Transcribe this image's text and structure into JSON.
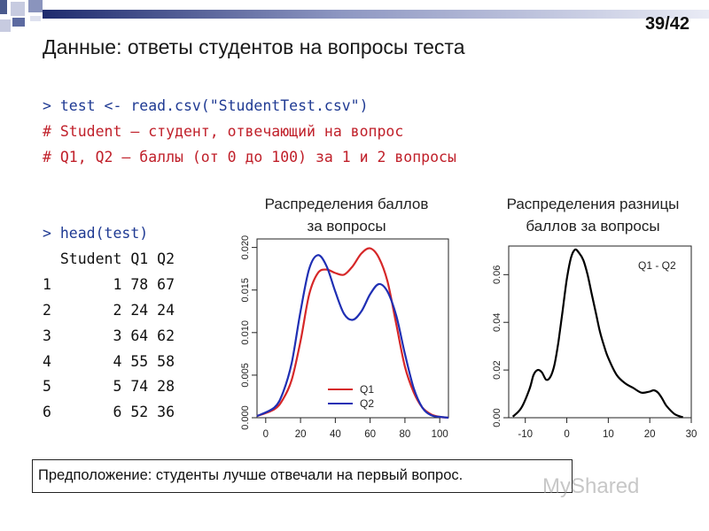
{
  "slide": {
    "title": "Данные: ответы студентов на вопросы теста",
    "page_number": "39/42"
  },
  "code_block": {
    "prompt1": "> test <- read.csv(\"StudentTest.csv\")",
    "comment1": "# Student – студент, отвечающий на вопрос",
    "comment2": "# Q1, Q2 – баллы (от 0 до 100) за 1 и 2 вопросы",
    "prompt2": "> head(test)",
    "header": "  Student Q1 Q2",
    "rows": [
      "1       1 78 67",
      "2       2 24 24",
      "3       3 64 62",
      "4       4 55 58",
      "5       5 74 28",
      "6       6 52 36"
    ]
  },
  "chart_titles": {
    "left_line1": "Распределения баллов",
    "left_line2": "за вопросы",
    "right_line1": "Распределения разницы",
    "right_line2": "баллов за вопросы"
  },
  "hypothesis": "Предположение: студенты лучше отвечали на первый вопрос.",
  "watermark": "MyShared",
  "colors": {
    "q1": "#d62728",
    "q2": "#1f2fb4",
    "diff": "#000000",
    "prompt": "#1f3a93",
    "comment": "#c0202a"
  },
  "chart_data": [
    {
      "type": "line",
      "xlim": [
        -5,
        105
      ],
      "ylim": [
        0,
        0.021
      ],
      "x_ticks": [
        0,
        20,
        40,
        60,
        80,
        100
      ],
      "y_ticks": [
        "0.000",
        "0.005",
        "0.010",
        "0.015",
        "0.020"
      ],
      "legend_position": "bottom-right",
      "series": [
        {
          "name": "Q1",
          "color": "#d62728",
          "x": [
            -5,
            5,
            10,
            15,
            20,
            25,
            30,
            35,
            40,
            45,
            50,
            55,
            60,
            65,
            70,
            75,
            80,
            85,
            90,
            95,
            100,
            105
          ],
          "y": [
            0.0002,
            0.001,
            0.0022,
            0.0045,
            0.009,
            0.0145,
            0.017,
            0.0174,
            0.017,
            0.0168,
            0.0178,
            0.0193,
            0.0199,
            0.0188,
            0.016,
            0.011,
            0.006,
            0.003,
            0.0012,
            0.0004,
            0.0001,
            0.0
          ]
        },
        {
          "name": "Q2",
          "color": "#1f2fb4",
          "x": [
            -5,
            5,
            10,
            15,
            20,
            25,
            30,
            35,
            40,
            45,
            50,
            55,
            60,
            65,
            70,
            75,
            80,
            85,
            90,
            95,
            100,
            105
          ],
          "y": [
            0.0002,
            0.0012,
            0.003,
            0.0065,
            0.0125,
            0.0175,
            0.0191,
            0.0178,
            0.0148,
            0.0122,
            0.0115,
            0.0125,
            0.0145,
            0.0157,
            0.0148,
            0.012,
            0.0075,
            0.0035,
            0.0012,
            0.0003,
            0.0001,
            0.0
          ]
        }
      ]
    },
    {
      "type": "line",
      "xlim": [
        -14,
        30
      ],
      "ylim": [
        0,
        0.072
      ],
      "x_ticks": [
        -10,
        0,
        10,
        20,
        30
      ],
      "y_ticks": [
        "0.00",
        "0.02",
        "0.04",
        "0.06"
      ],
      "legend_position": "top-right",
      "series": [
        {
          "name": "Q1 - Q2",
          "color": "#000000",
          "x": [
            -13,
            -11,
            -9,
            -8,
            -7,
            -6,
            -5,
            -4,
            -3,
            -2,
            -1,
            0,
            1,
            2,
            3,
            4,
            5,
            6,
            7,
            8,
            9,
            10,
            12,
            14,
            16,
            18,
            20,
            21,
            22,
            23,
            24,
            26,
            28
          ],
          "y": [
            0.0005,
            0.004,
            0.012,
            0.018,
            0.02,
            0.019,
            0.016,
            0.017,
            0.022,
            0.032,
            0.045,
            0.058,
            0.067,
            0.0705,
            0.069,
            0.066,
            0.06,
            0.052,
            0.044,
            0.036,
            0.03,
            0.025,
            0.018,
            0.0145,
            0.0125,
            0.0105,
            0.011,
            0.0115,
            0.0105,
            0.008,
            0.005,
            0.0015,
            0.0002
          ]
        }
      ]
    }
  ]
}
